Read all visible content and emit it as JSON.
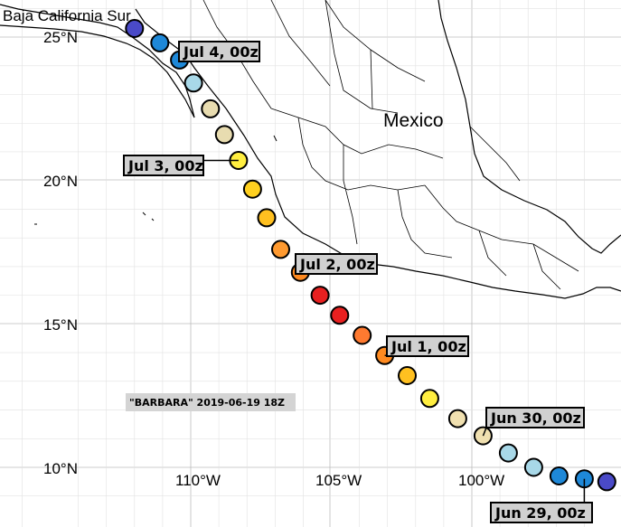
{
  "map": {
    "place_labels": {
      "region": "Baja California Sur",
      "country": "Mexico"
    },
    "lat_labels": [
      "25°N",
      "20°N",
      "15°N",
      "10°N"
    ],
    "lon_labels": [
      "110°W",
      "105°W",
      "100°W"
    ],
    "storm_label": "\"BARBARA\" 2019-06-19 18Z",
    "time_labels": [
      "Jul 4, 00z",
      "Jul 3, 00z",
      "Jul 2, 00z",
      "Jul 1, 00z",
      "Jun 30, 00z",
      "Jun 29, 00z"
    ],
    "track": [
      {
        "lon": -112.0,
        "lat": 25.3,
        "color": "#4a4ac8"
      },
      {
        "lon": -111.1,
        "lat": 24.8,
        "color": "#1e88d8"
      },
      {
        "lon": -110.4,
        "lat": 24.2,
        "color": "#1e88d8"
      },
      {
        "lon": -109.9,
        "lat": 23.4,
        "color": "#a8d8e8"
      },
      {
        "lon": -109.3,
        "lat": 22.5,
        "color": "#e8dcb0"
      },
      {
        "lon": -108.8,
        "lat": 21.6,
        "color": "#e8dcb0"
      },
      {
        "lon": -108.3,
        "lat": 20.7,
        "color": "#ffee40"
      },
      {
        "lon": -107.8,
        "lat": 19.7,
        "color": "#ffd020"
      },
      {
        "lon": -107.3,
        "lat": 18.7,
        "color": "#ffc020"
      },
      {
        "lon": -106.8,
        "lat": 17.6,
        "color": "#ff9a30"
      },
      {
        "lon": -106.1,
        "lat": 16.8,
        "color": "#ff8a20"
      },
      {
        "lon": -105.4,
        "lat": 16.0,
        "color": "#e82020"
      },
      {
        "lon": -104.7,
        "lat": 15.3,
        "color": "#e82020"
      },
      {
        "lon": -103.9,
        "lat": 14.6,
        "color": "#ff7a30"
      },
      {
        "lon": -103.1,
        "lat": 13.9,
        "color": "#ff8a20"
      },
      {
        "lon": -102.3,
        "lat": 13.2,
        "color": "#ffc020"
      },
      {
        "lon": -101.5,
        "lat": 12.4,
        "color": "#ffee40"
      },
      {
        "lon": -100.5,
        "lat": 11.7,
        "color": "#f0e0b0"
      },
      {
        "lon": -99.6,
        "lat": 11.1,
        "color": "#f0e0b0"
      },
      {
        "lon": -98.7,
        "lat": 10.5,
        "color": "#a8d8e8"
      },
      {
        "lon": -97.8,
        "lat": 10.0,
        "color": "#a8d8e8"
      },
      {
        "lon": -96.9,
        "lat": 9.7,
        "color": "#1e88d8"
      },
      {
        "lon": -96.0,
        "lat": 9.6,
        "color": "#1e88d8"
      },
      {
        "lon": -95.2,
        "lat": 9.5,
        "color": "#4a4ac8"
      }
    ]
  }
}
